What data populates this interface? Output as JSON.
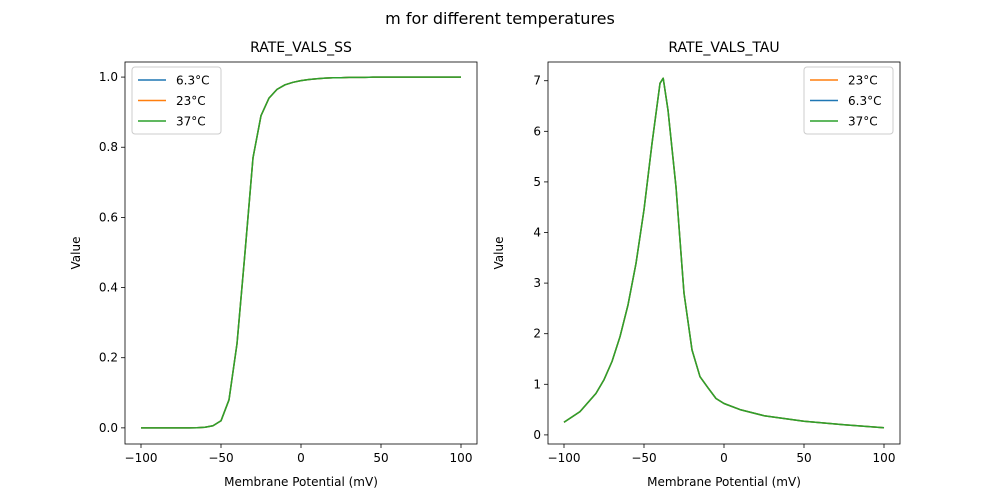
{
  "figure_title": "m for different temperatures",
  "colors": {
    "6.3°C": "#1f77b4",
    "23°C": "#ff7f0e",
    "37°C": "#2ca02c"
  },
  "chart_data": [
    {
      "type": "line",
      "title": "RATE_VALS_SS",
      "xlabel": "Membrane Potential (mV)",
      "ylabel": "Value",
      "xlim": [
        -110,
        110
      ],
      "ylim": [
        -0.046,
        1.043
      ],
      "xticks": [
        -100,
        -50,
        0,
        50,
        100
      ],
      "xtick_labels": [
        "−100",
        "−50",
        "0",
        "50",
        "100"
      ],
      "yticks": [
        0,
        0.2,
        0.4,
        0.6,
        0.8,
        1.0
      ],
      "ytick_labels": [
        "0.0",
        "0.2",
        "0.4",
        "0.6",
        "0.8",
        "1.0"
      ],
      "legend_position": "upper-left",
      "legend": [
        "6.3°C",
        "23°C",
        "37°C"
      ],
      "x": [
        -100,
        -95,
        -90,
        -85,
        -80,
        -75,
        -70,
        -65,
        -60,
        -55,
        -50,
        -45,
        -40,
        -35,
        -30,
        -25,
        -20,
        -15,
        -10,
        -5,
        0,
        5,
        10,
        15,
        20,
        25,
        30,
        35,
        40,
        45,
        50,
        55,
        60,
        65,
        70,
        75,
        80,
        85,
        90,
        95,
        100
      ],
      "series": [
        {
          "name": "6.3°C",
          "values": [
            0,
            0,
            0,
            0,
            0,
            0,
            0,
            0.0005,
            0.002,
            0.006,
            0.02,
            0.08,
            0.24,
            0.5,
            0.77,
            0.89,
            0.94,
            0.965,
            0.978,
            0.985,
            0.99,
            0.993,
            0.995,
            0.997,
            0.998,
            0.998,
            0.999,
            0.999,
            0.999,
            1,
            1,
            1,
            1,
            1,
            1,
            1,
            1,
            1,
            1,
            1,
            1
          ]
        },
        {
          "name": "23°C",
          "values": [
            0,
            0,
            0,
            0,
            0,
            0,
            0,
            0.0005,
            0.002,
            0.006,
            0.02,
            0.08,
            0.24,
            0.5,
            0.77,
            0.89,
            0.94,
            0.965,
            0.978,
            0.985,
            0.99,
            0.993,
            0.995,
            0.997,
            0.998,
            0.998,
            0.999,
            0.999,
            0.999,
            1,
            1,
            1,
            1,
            1,
            1,
            1,
            1,
            1,
            1,
            1,
            1
          ]
        },
        {
          "name": "37°C",
          "values": [
            0,
            0,
            0,
            0,
            0,
            0,
            0,
            0.0005,
            0.002,
            0.006,
            0.02,
            0.08,
            0.24,
            0.5,
            0.77,
            0.89,
            0.94,
            0.965,
            0.978,
            0.985,
            0.99,
            0.993,
            0.995,
            0.997,
            0.998,
            0.998,
            0.999,
            0.999,
            0.999,
            1,
            1,
            1,
            1,
            1,
            1,
            1,
            1,
            1,
            1,
            1,
            1
          ]
        }
      ]
    },
    {
      "type": "line",
      "title": "RATE_VALS_TAU",
      "xlabel": "Membrane Potential (mV)",
      "ylabel": "Value",
      "xlim": [
        -110,
        110
      ],
      "ylim": [
        -0.18,
        7.37
      ],
      "xticks": [
        -100,
        -50,
        0,
        50,
        100
      ],
      "xtick_labels": [
        "−100",
        "−50",
        "0",
        "50",
        "100"
      ],
      "yticks": [
        0,
        1,
        2,
        3,
        4,
        5,
        6,
        7
      ],
      "ytick_labels": [
        "0",
        "1",
        "2",
        "3",
        "4",
        "5",
        "6",
        "7"
      ],
      "legend_position": "upper-right",
      "legend": [
        "23°C",
        "6.3°C",
        "37°C"
      ],
      "x": [
        -100,
        -90,
        -80,
        -75,
        -70,
        -65,
        -60,
        -55,
        -50,
        -45,
        -40,
        -38,
        -35,
        -30,
        -25,
        -20,
        -15,
        -10,
        -5,
        0,
        10,
        25,
        50,
        75,
        100
      ],
      "series": [
        {
          "name": "23°C",
          "values": [
            0.25,
            0.46,
            0.82,
            1.09,
            1.45,
            1.94,
            2.57,
            3.39,
            4.45,
            5.76,
            6.95,
            7.05,
            6.42,
            4.9,
            2.8,
            1.68,
            1.15,
            0.93,
            0.72,
            0.62,
            0.5,
            0.38,
            0.27,
            0.2,
            0.14
          ]
        },
        {
          "name": "6.3°C",
          "values": [
            0.25,
            0.46,
            0.82,
            1.09,
            1.45,
            1.94,
            2.57,
            3.39,
            4.45,
            5.76,
            6.95,
            7.05,
            6.42,
            4.9,
            2.8,
            1.68,
            1.15,
            0.93,
            0.72,
            0.62,
            0.5,
            0.38,
            0.27,
            0.2,
            0.14
          ]
        },
        {
          "name": "37°C",
          "values": [
            0.25,
            0.46,
            0.82,
            1.09,
            1.45,
            1.94,
            2.57,
            3.39,
            4.45,
            5.76,
            6.95,
            7.05,
            6.42,
            4.9,
            2.8,
            1.68,
            1.15,
            0.93,
            0.72,
            0.62,
            0.5,
            0.38,
            0.27,
            0.2,
            0.14
          ]
        }
      ]
    }
  ]
}
